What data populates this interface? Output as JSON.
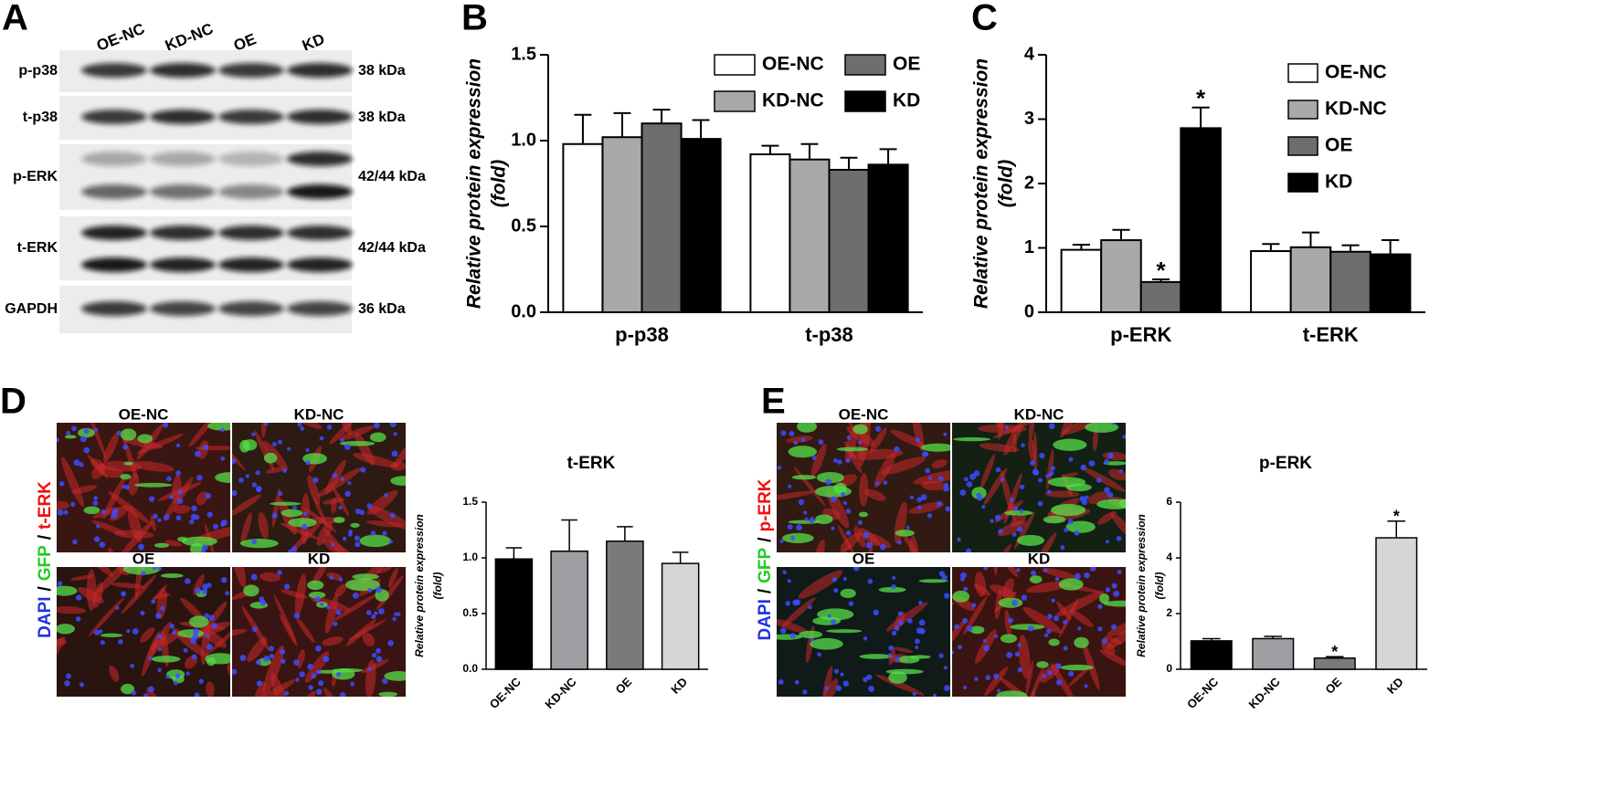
{
  "panel_letters": [
    "A",
    "B",
    "C",
    "D",
    "E"
  ],
  "blot": {
    "lanes": [
      "OE-NC",
      "KD-NC",
      "OE",
      "KD"
    ],
    "rows": [
      {
        "label": "p-p38",
        "size": "38 kDa"
      },
      {
        "label": "t-p38",
        "size": "38 kDa"
      },
      {
        "label": "p-ERK",
        "size": "42/44 kDa"
      },
      {
        "label": "t-ERK",
        "size": "42/44 kDa"
      },
      {
        "label": "GAPDH",
        "size": "36 kDa"
      }
    ]
  },
  "chart_data": [
    {
      "type": "bar",
      "categories": [
        "p-p38",
        "t-p38"
      ],
      "ylabel": [
        "Relative protein expression",
        "(fold)"
      ],
      "ylim": [
        0,
        1.5
      ],
      "yticks": [
        {
          "value": 0,
          "label": "0.0"
        },
        {
          "value": 0.5,
          "label": "0.5"
        },
        {
          "value": 1,
          "label": "1.0"
        },
        {
          "value": 1.5,
          "label": "1.5"
        }
      ],
      "legend_columns": 2,
      "series": [
        {
          "name": "OE-NC",
          "color": "#ffffff",
          "values": [
            0.98,
            0.92
          ],
          "errors": [
            0.17,
            0.05
          ]
        },
        {
          "name": "KD-NC",
          "color": "#a9a9ab",
          "values": [
            1.02,
            0.89
          ],
          "errors": [
            0.14,
            0.09
          ]
        },
        {
          "name": "OE",
          "color": "#6e6e6e",
          "values": [
            1.1,
            0.83
          ],
          "errors": [
            0.08,
            0.07
          ]
        },
        {
          "name": "KD",
          "color": "#000000",
          "values": [
            1.01,
            0.86
          ],
          "errors": [
            0.11,
            0.09
          ]
        }
      ]
    },
    {
      "type": "bar",
      "categories": [
        "p-ERK",
        "t-ERK"
      ],
      "ylabel": [
        "Relative protein expression",
        "(fold)"
      ],
      "ylim": [
        0,
        4
      ],
      "yticks": [
        0,
        1,
        2,
        3,
        4
      ],
      "legend_columns": 1,
      "series": [
        {
          "name": "OE-NC",
          "color": "#ffffff",
          "values": [
            0.97,
            0.95
          ],
          "errors": [
            0.08,
            0.11
          ]
        },
        {
          "name": "KD-NC",
          "color": "#a9a9ab",
          "values": [
            1.12,
            1.01
          ],
          "errors": [
            0.16,
            0.23
          ]
        },
        {
          "name": "OE",
          "color": "#6e6e6e",
          "values": [
            0.47,
            0.94
          ],
          "errors": [
            0.04,
            0.1
          ]
        },
        {
          "name": "KD",
          "color": "#000000",
          "values": [
            2.86,
            0.9
          ],
          "errors": [
            0.32,
            0.22
          ]
        }
      ],
      "annotations": [
        {
          "text": "*",
          "category": "p-ERK",
          "series": "OE"
        },
        {
          "text": "*",
          "category": "p-ERK",
          "series": "KD"
        }
      ]
    },
    {
      "type": "bar",
      "title": "t-ERK",
      "categories": [
        "OE-NC",
        "KD-NC",
        "OE",
        "KD"
      ],
      "ylabel": [
        "Relative protein expression",
        "(fold)"
      ],
      "colors": [
        "#000000",
        "#9e9ea3",
        "#7a7a7a",
        "#d6d6d6"
      ],
      "values": [
        0.99,
        1.06,
        1.15,
        0.95
      ],
      "errors": [
        0.1,
        0.28,
        0.13,
        0.1
      ],
      "ylim": [
        0,
        1.5
      ],
      "yticks": [
        {
          "value": 0,
          "label": "0.0"
        },
        {
          "value": 0.5,
          "label": "0.5"
        },
        {
          "value": 1,
          "label": "1.0"
        },
        {
          "value": 1.5,
          "label": "1.5"
        }
      ]
    },
    {
      "type": "bar",
      "title": "p-ERK",
      "categories": [
        "OE-NC",
        "KD-NC",
        "OE",
        "KD"
      ],
      "ylabel": [
        "Relative protein expression",
        "(fold)"
      ],
      "colors": [
        "#000000",
        "#9e9ea3",
        "#7a7a7a",
        "#d6d6d6"
      ],
      "values": [
        1.02,
        1.1,
        0.4,
        4.72
      ],
      "errors": [
        0.08,
        0.08,
        0.05,
        0.6
      ],
      "ylim": [
        0,
        6
      ],
      "yticks": [
        0,
        2,
        4,
        6
      ],
      "annotations": [
        {
          "text": "*",
          "category": "OE"
        },
        {
          "text": "*",
          "category": "KD"
        }
      ]
    }
  ],
  "micrographs": [
    {
      "panels": [
        "OE-NC",
        "KD-NC",
        "OE",
        "KD"
      ],
      "stain": [
        {
          "text": "DAPI",
          "color": "#2233dd"
        },
        {
          "text": "/",
          "color": "#000000"
        },
        {
          "text": "GFP",
          "color": "#22cc22"
        },
        {
          "text": "/",
          "color": "#000000"
        },
        {
          "text": "t-ERK",
          "color": "#ee1111"
        }
      ]
    },
    {
      "panels": [
        "OE-NC",
        "KD-NC",
        "OE",
        "KD"
      ],
      "stain": [
        {
          "text": "DAPI",
          "color": "#2233dd"
        },
        {
          "text": "/",
          "color": "#000000"
        },
        {
          "text": "GFP",
          "color": "#22cc22"
        },
        {
          "text": "/",
          "color": "#000000"
        },
        {
          "text": "p-ERK",
          "color": "#ee1111"
        }
      ]
    }
  ]
}
